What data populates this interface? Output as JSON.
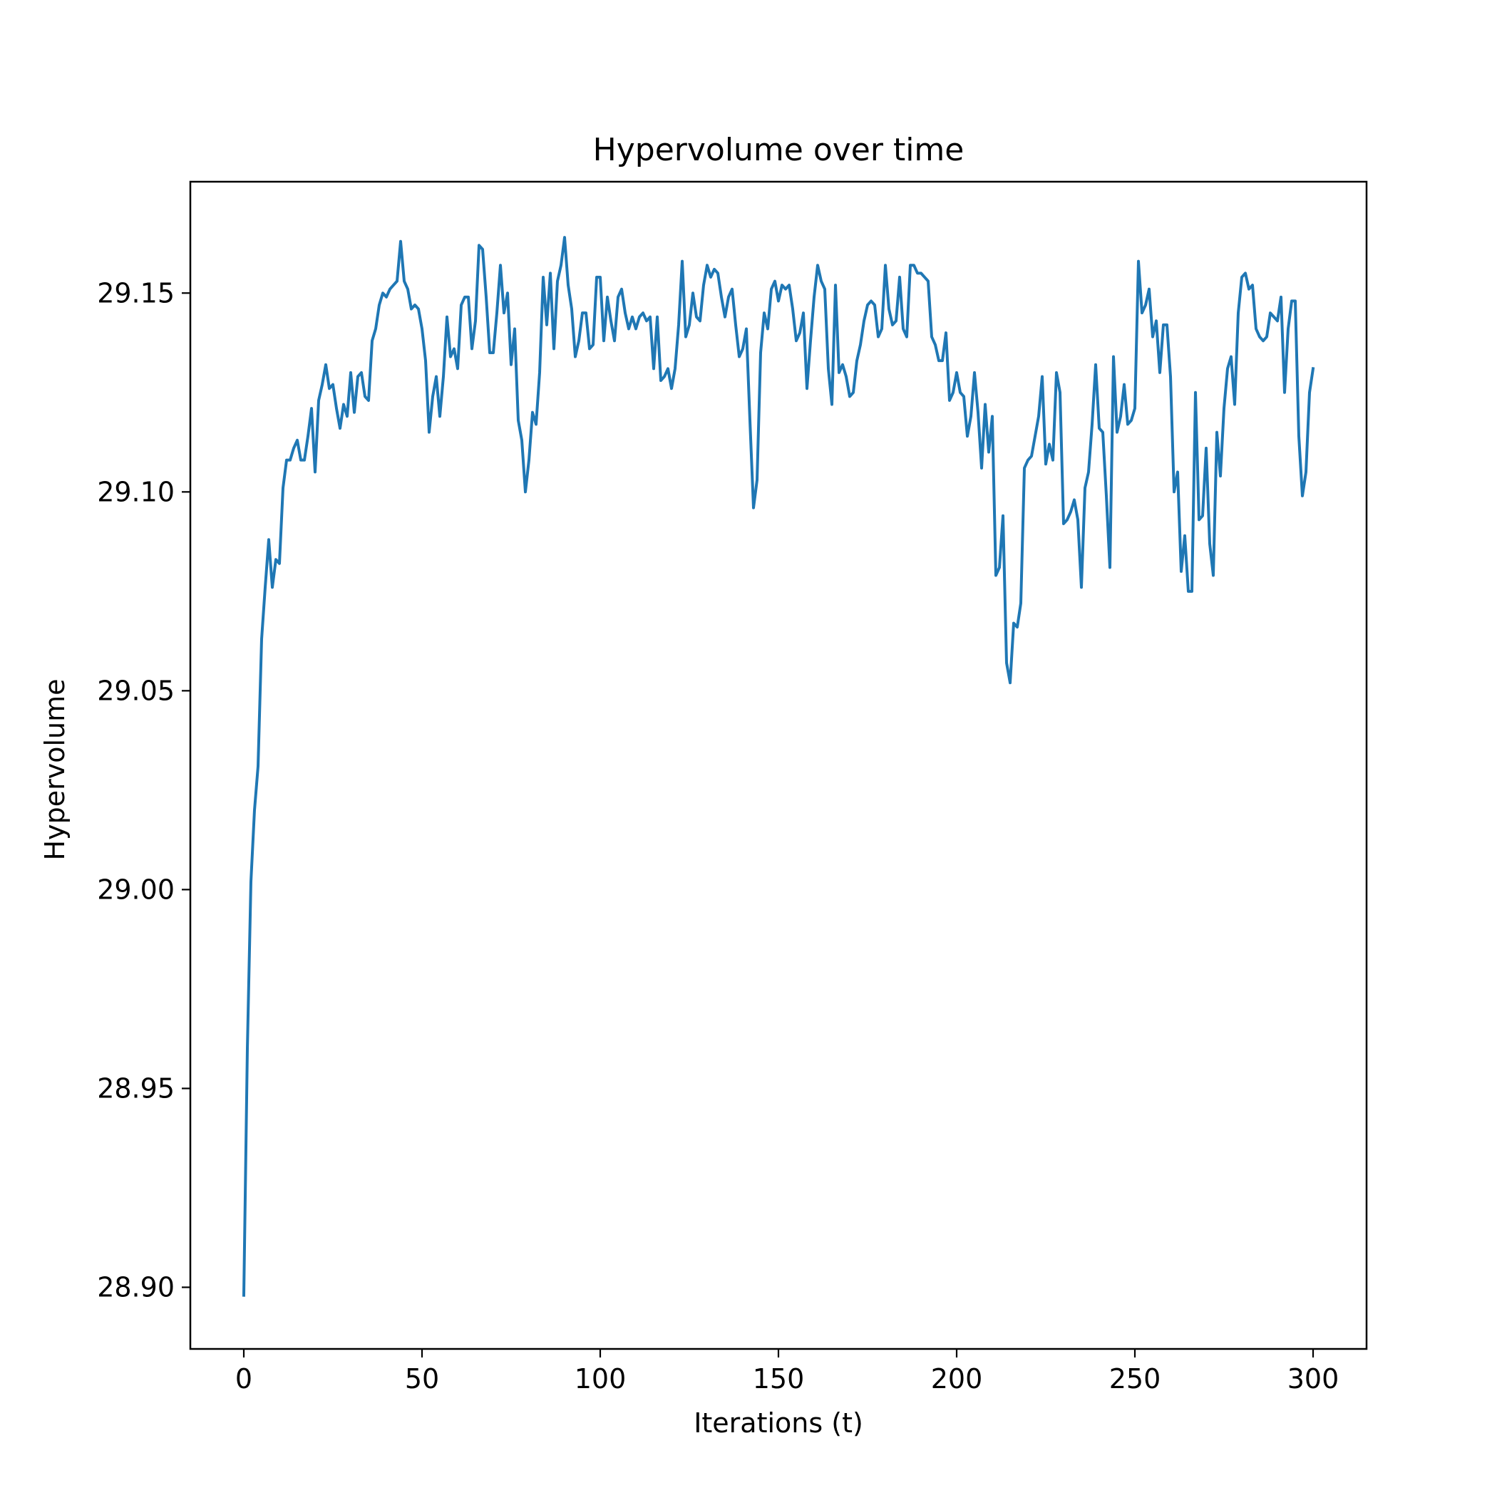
{
  "chart_data": {
    "type": "line",
    "title": "Hypervolume over time",
    "xlabel": "Iterations (t)",
    "ylabel": "Hypervolume",
    "xlim": [
      -15,
      315
    ],
    "ylim": [
      28.8845,
      29.178
    ],
    "xticks": [
      0,
      50,
      100,
      150,
      200,
      250,
      300
    ],
    "yticks": [
      28.9,
      28.95,
      29.0,
      29.05,
      29.1,
      29.15
    ],
    "xtick_labels": [
      "0",
      "50",
      "100",
      "150",
      "200",
      "250",
      "300"
    ],
    "ytick_labels": [
      "28.90",
      "28.95",
      "29.00",
      "29.05",
      "29.10",
      "29.15"
    ],
    "grid": false,
    "legend": "none",
    "series": [
      {
        "color": "#1f77b4",
        "x": [
          0,
          1,
          2,
          3,
          4,
          5,
          6,
          7,
          8,
          9,
          10,
          11,
          12,
          13,
          14,
          15,
          16,
          17,
          18,
          19,
          20,
          21,
          22,
          23,
          24,
          25,
          26,
          27,
          28,
          29,
          30,
          31,
          32,
          33,
          34,
          35,
          36,
          37,
          38,
          39,
          40,
          41,
          42,
          43,
          44,
          45,
          46,
          47,
          48,
          49,
          50,
          51,
          52,
          53,
          54,
          55,
          56,
          57,
          58,
          59,
          60,
          61,
          62,
          63,
          64,
          65,
          66,
          67,
          68,
          69,
          70,
          71,
          72,
          73,
          74,
          75,
          76,
          77,
          78,
          79,
          80,
          81,
          82,
          83,
          84,
          85,
          86,
          87,
          88,
          89,
          90,
          91,
          92,
          93,
          94,
          95,
          96,
          97,
          98,
          99,
          100,
          101,
          102,
          103,
          104,
          105,
          106,
          107,
          108,
          109,
          110,
          111,
          112,
          113,
          114,
          115,
          116,
          117,
          118,
          119,
          120,
          121,
          122,
          123,
          124,
          125,
          126,
          127,
          128,
          129,
          130,
          131,
          132,
          133,
          134,
          135,
          136,
          137,
          138,
          139,
          140,
          141,
          142,
          143,
          144,
          145,
          146,
          147,
          148,
          149,
          150,
          151,
          152,
          153,
          154,
          155,
          156,
          157,
          158,
          159,
          160,
          161,
          162,
          163,
          164,
          165,
          166,
          167,
          168,
          169,
          170,
          171,
          172,
          173,
          174,
          175,
          176,
          177,
          178,
          179,
          180,
          181,
          182,
          183,
          184,
          185,
          186,
          187,
          188,
          189,
          190,
          191,
          192,
          193,
          194,
          195,
          196,
          197,
          198,
          199,
          200,
          201,
          202,
          203,
          204,
          205,
          206,
          207,
          208,
          209,
          210,
          211,
          212,
          213,
          214,
          215,
          216,
          217,
          218,
          219,
          220,
          221,
          222,
          223,
          224,
          225,
          226,
          227,
          228,
          229,
          230,
          231,
          232,
          233,
          234,
          235,
          236,
          237,
          238,
          239,
          240,
          241,
          242,
          243,
          244,
          245,
          246,
          247,
          248,
          249,
          250,
          251,
          252,
          253,
          254,
          255,
          256,
          257,
          258,
          259,
          260,
          261,
          262,
          263,
          264,
          265,
          266,
          267,
          268,
          269,
          270,
          271,
          272,
          273,
          274,
          275,
          276,
          277,
          278,
          279,
          280,
          281,
          282,
          283,
          284,
          285,
          286,
          287,
          288,
          289,
          290,
          291,
          292,
          293,
          294,
          295,
          296,
          297,
          298,
          299,
          300
        ],
        "y": [
          28.898,
          28.96,
          29.002,
          29.02,
          29.031,
          29.063,
          29.076,
          29.088,
          29.076,
          29.083,
          29.082,
          29.101,
          29.108,
          29.108,
          29.111,
          29.113,
          29.108,
          29.108,
          29.114,
          29.121,
          29.105,
          29.123,
          29.127,
          29.132,
          29.126,
          29.127,
          29.121,
          29.116,
          29.122,
          29.119,
          29.13,
          29.12,
          29.129,
          29.13,
          29.124,
          29.123,
          29.138,
          29.141,
          29.147,
          29.15,
          29.149,
          29.151,
          29.152,
          29.153,
          29.163,
          29.153,
          29.151,
          29.146,
          29.147,
          29.146,
          29.141,
          29.133,
          29.115,
          29.124,
          29.129,
          29.119,
          29.129,
          29.144,
          29.134,
          29.136,
          29.131,
          29.147,
          29.149,
          29.149,
          29.136,
          29.143,
          29.162,
          29.161,
          29.149,
          29.135,
          29.135,
          29.145,
          29.157,
          29.145,
          29.15,
          29.132,
          29.141,
          29.118,
          29.113,
          29.1,
          29.108,
          29.12,
          29.117,
          29.13,
          29.154,
          29.142,
          29.155,
          29.136,
          29.153,
          29.157,
          29.164,
          29.152,
          29.146,
          29.134,
          29.138,
          29.145,
          29.145,
          29.136,
          29.137,
          29.154,
          29.154,
          29.138,
          29.149,
          29.143,
          29.138,
          29.149,
          29.151,
          29.145,
          29.141,
          29.144,
          29.141,
          29.144,
          29.145,
          29.143,
          29.144,
          29.131,
          29.144,
          29.128,
          29.129,
          29.131,
          29.126,
          29.131,
          29.142,
          29.158,
          29.139,
          29.142,
          29.15,
          29.144,
          29.143,
          29.152,
          29.157,
          29.154,
          29.156,
          29.155,
          29.149,
          29.144,
          29.149,
          29.151,
          29.142,
          29.134,
          29.136,
          29.141,
          29.118,
          29.096,
          29.103,
          29.135,
          29.145,
          29.141,
          29.151,
          29.153,
          29.148,
          29.152,
          29.151,
          29.152,
          29.146,
          29.138,
          29.14,
          29.145,
          29.126,
          29.138,
          29.149,
          29.157,
          29.153,
          29.151,
          29.131,
          29.122,
          29.152,
          29.13,
          29.132,
          29.129,
          29.124,
          29.125,
          29.133,
          29.137,
          29.143,
          29.147,
          29.148,
          29.147,
          29.139,
          29.141,
          29.157,
          29.146,
          29.142,
          29.143,
          29.154,
          29.141,
          29.139,
          29.157,
          29.157,
          29.155,
          29.155,
          29.154,
          29.153,
          29.139,
          29.137,
          29.133,
          29.133,
          29.14,
          29.123,
          29.125,
          29.13,
          29.125,
          29.124,
          29.114,
          29.119,
          29.13,
          29.12,
          29.106,
          29.122,
          29.11,
          29.119,
          29.079,
          29.081,
          29.094,
          29.057,
          29.052,
          29.067,
          29.066,
          29.072,
          29.106,
          29.108,
          29.109,
          29.114,
          29.119,
          29.129,
          29.107,
          29.112,
          29.108,
          29.13,
          29.125,
          29.092,
          29.093,
          29.095,
          29.098,
          29.093,
          29.076,
          29.101,
          29.105,
          29.117,
          29.132,
          29.116,
          29.115,
          29.099,
          29.081,
          29.134,
          29.115,
          29.119,
          29.127,
          29.117,
          29.118,
          29.121,
          29.158,
          29.145,
          29.147,
          29.151,
          29.139,
          29.143,
          29.13,
          29.142,
          29.142,
          29.129,
          29.1,
          29.105,
          29.08,
          29.089,
          29.075,
          29.075,
          29.125,
          29.093,
          29.094,
          29.111,
          29.087,
          29.079,
          29.115,
          29.104,
          29.121,
          29.131,
          29.134,
          29.122,
          29.145,
          29.154,
          29.155,
          29.151,
          29.152,
          29.141,
          29.139,
          29.138,
          29.139,
          29.145,
          29.144,
          29.143,
          29.149,
          29.125,
          29.141,
          29.148,
          29.148,
          29.114,
          29.099,
          29.105,
          29.125,
          29.131
        ]
      }
    ]
  }
}
